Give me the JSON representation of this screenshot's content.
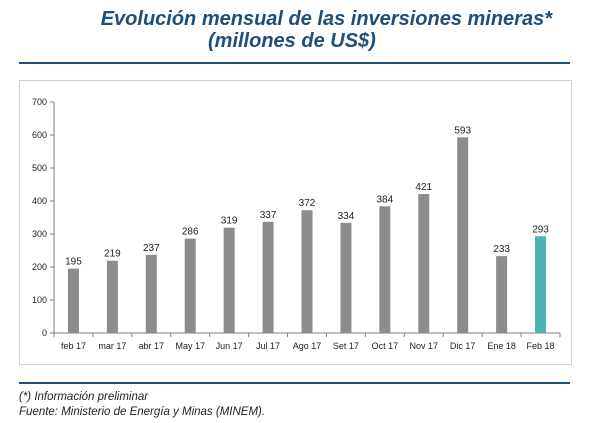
{
  "header": {
    "title_line1": "Evolución mensual de las inversiones mineras*",
    "title_line2": "(millones de US$)"
  },
  "footer": {
    "note": "(*) Información preliminar",
    "source": "Fuente: Ministerio de Energía y Minas (MINEM)."
  },
  "colors": {
    "bar_default": "#8c8c8c",
    "bar_highlight": "#4fb3b3",
    "title": "#1f4e79"
  },
  "chart_data": {
    "type": "bar",
    "title": "Evolución mensual de las inversiones mineras*",
    "subtitle": "(millones de US$)",
    "categories": [
      "feb 17",
      "mar 17",
      "abr 17",
      "May 17",
      "Jun 17",
      "Jul 17",
      "Ago 17",
      "Set 17",
      "Oct 17",
      "Nov 17",
      "Dic 17",
      "Ene 18",
      "Feb 18"
    ],
    "values": [
      195,
      219,
      237,
      286,
      319,
      337,
      372,
      334,
      384,
      421,
      593,
      233,
      293
    ],
    "highlight_index": 12,
    "ylim": [
      0,
      700
    ],
    "yticks": [
      0,
      100,
      200,
      300,
      400,
      500,
      600,
      700
    ],
    "grid": false,
    "legend": "none",
    "xlabel": "",
    "ylabel": ""
  }
}
